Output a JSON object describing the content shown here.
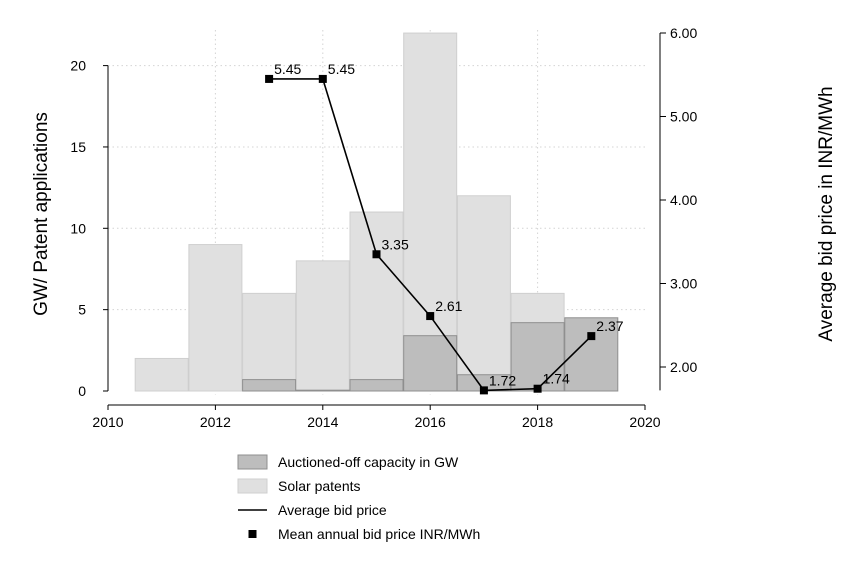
{
  "chart_data": {
    "type": "bar",
    "x": [
      2011,
      2012,
      2013,
      2014,
      2015,
      2016,
      2017,
      2018,
      2019
    ],
    "series": [
      {
        "name": "Solar patents",
        "kind": "bar",
        "axis": "left",
        "color": "#e0e0e0",
        "x": [
          2011,
          2012,
          2013,
          2014,
          2015,
          2016,
          2017,
          2018
        ],
        "values": [
          2,
          9,
          6,
          8,
          11,
          22,
          12,
          6
        ]
      },
      {
        "name": "Auctioned-off capacity in GW",
        "kind": "bar",
        "axis": "left",
        "color": "#bdbdbd",
        "x": [
          2013,
          2014,
          2015,
          2016,
          2017,
          2018,
          2019
        ],
        "values": [
          0.7,
          0.05,
          0.7,
          3.4,
          1.0,
          4.2,
          4.5
        ]
      },
      {
        "name": "Average bid price",
        "kind": "line",
        "axis": "right",
        "color": "#000000",
        "x": [
          2013,
          2014,
          2015,
          2016,
          2017,
          2018,
          2019
        ],
        "values": [
          5.45,
          5.45,
          3.35,
          2.61,
          1.72,
          1.74,
          2.37
        ]
      },
      {
        "name": "Mean annual bid price INR/MWh",
        "kind": "marker",
        "axis": "right",
        "color": "#000000",
        "x": [
          2013,
          2014,
          2015,
          2016,
          2017,
          2018,
          2019
        ],
        "values": [
          5.45,
          5.45,
          3.35,
          2.61,
          1.72,
          1.74,
          2.37
        ],
        "labels": [
          "5.45",
          "5.45",
          "3.35",
          "2.61",
          "1.72",
          "1.74",
          "2.37"
        ]
      }
    ],
    "xlabel": "",
    "ylabel": "GW/ Patent applications",
    "y2label": "Average bid price in INR/MWh",
    "xlim": [
      2010,
      2020
    ],
    "ylim": [
      0,
      23
    ],
    "y2lim": [
      1.72,
      6.0
    ],
    "xticks": [
      "2010",
      "2012",
      "2014",
      "2016",
      "2018",
      "2020"
    ],
    "yticks": [
      "0",
      "5",
      "10",
      "15",
      "20"
    ],
    "y2ticks": [
      "2.00",
      "3.00",
      "4.00",
      "5.00",
      "6.00"
    ],
    "grid": true,
    "legend_position": "bottom"
  }
}
